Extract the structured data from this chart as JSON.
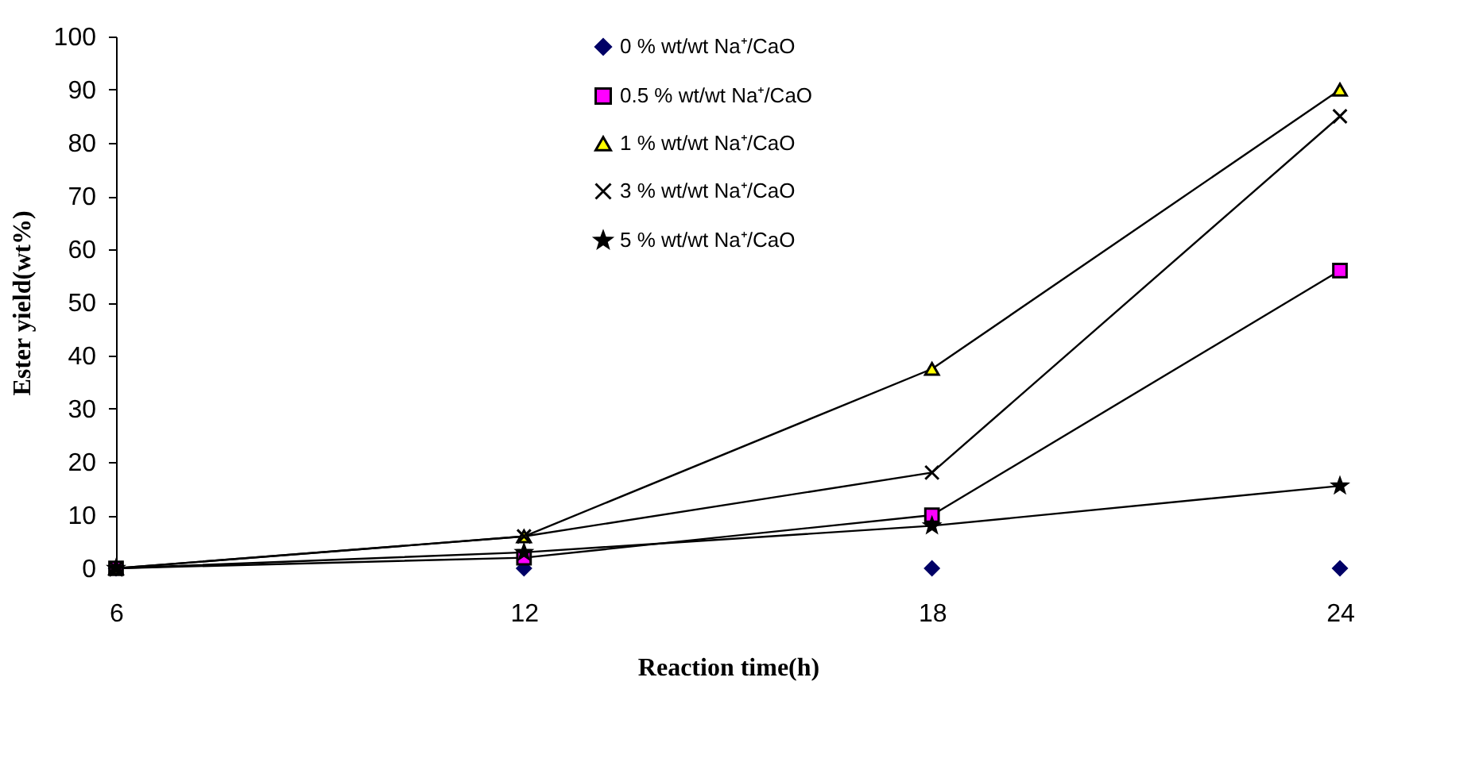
{
  "chart_data": {
    "type": "line",
    "xlabel": "Reaction time(h)",
    "ylabel": "Ester yield(wt%)",
    "x": [
      6,
      12,
      18,
      24
    ],
    "xlim": [
      6,
      24
    ],
    "xticks": [
      6,
      12,
      18,
      24
    ],
    "ylim": [
      0,
      100
    ],
    "yticks": [
      0,
      10,
      20,
      30,
      40,
      50,
      60,
      70,
      80,
      90,
      100
    ],
    "grid": false,
    "legend": "top",
    "series": [
      {
        "name": "0 % wt/wt Na⁺/CaO",
        "type": "scatter",
        "color": "#000066",
        "marker": "diamond",
        "values": [
          0,
          0,
          0,
          0
        ]
      },
      {
        "name": "0.5 % wt/wt Na⁺/CaO",
        "color": "#ff00ff",
        "marker": "square",
        "values": [
          0,
          2,
          10,
          56
        ]
      },
      {
        "name": "1 % wt/wt Na⁺/CaO",
        "color": "#ffff00",
        "marker": "triangle",
        "values": [
          0,
          6,
          37.5,
          90
        ]
      },
      {
        "name": "3 % wt/wt Na⁺/CaO",
        "color": "#000000",
        "marker": "cross",
        "values": [
          0,
          6,
          18,
          85
        ]
      },
      {
        "name": "5 % wt/wt Na⁺/CaO",
        "color": "#000000",
        "marker": "star",
        "values": [
          0,
          3,
          8,
          15.5
        ]
      }
    ]
  }
}
